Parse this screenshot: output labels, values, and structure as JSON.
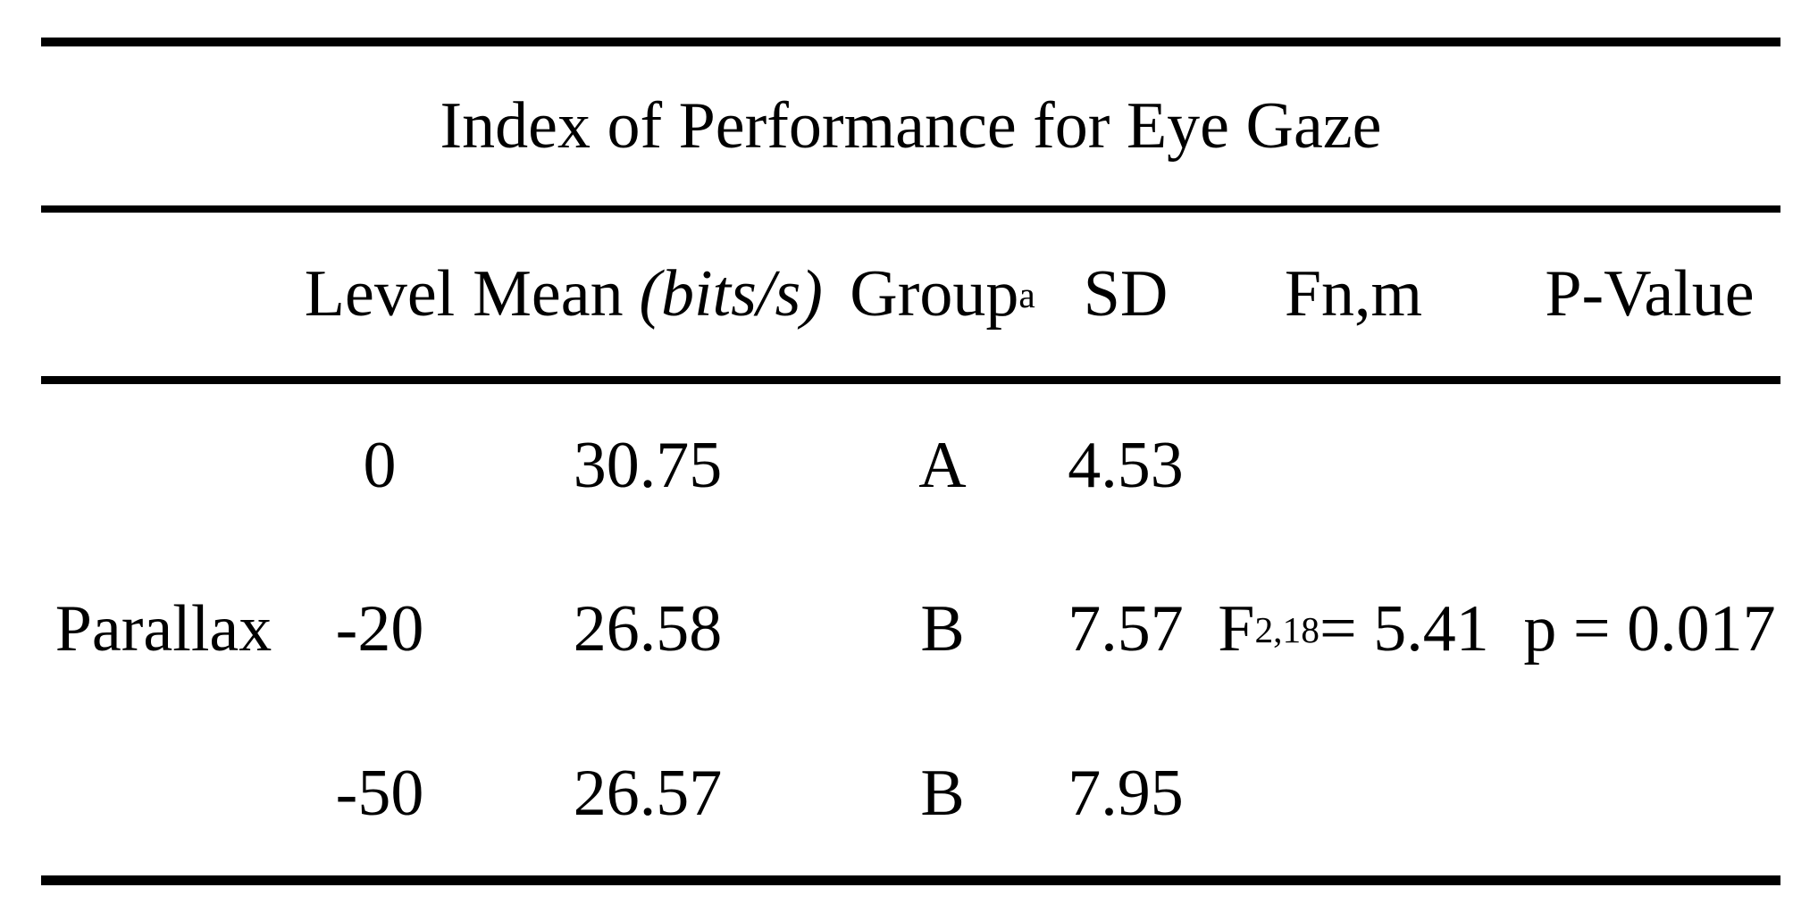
{
  "table": {
    "title": "Index of Performance for Eye Gaze",
    "columns": {
      "label": "",
      "level": "Level",
      "mean": "Mean",
      "mean_unit": "(bits/s)",
      "group": "Group",
      "group_sup": "a",
      "sd": "SD",
      "f": "Fn,m",
      "p": "P-Value"
    },
    "rows": [
      {
        "label": "",
        "level": "0",
        "mean": "30.75",
        "group": "A",
        "sd": "4.53",
        "f_base": "",
        "f_sub": "",
        "f_rest": "",
        "p": ""
      },
      {
        "label": "Parallax",
        "level": "-20",
        "mean": "26.58",
        "group": "B",
        "sd": "7.57",
        "f_base": "F",
        "f_sub": "2,18",
        "f_rest": " = 5.41",
        "p": "p = 0.017"
      },
      {
        "label": "",
        "level": "-50",
        "mean": "26.57",
        "group": "B",
        "sd": "7.95",
        "f_base": "",
        "f_sub": "",
        "f_rest": "",
        "p": ""
      }
    ],
    "colors": {
      "text": "#000000",
      "background": "#ffffff",
      "rule": "#000000"
    }
  }
}
